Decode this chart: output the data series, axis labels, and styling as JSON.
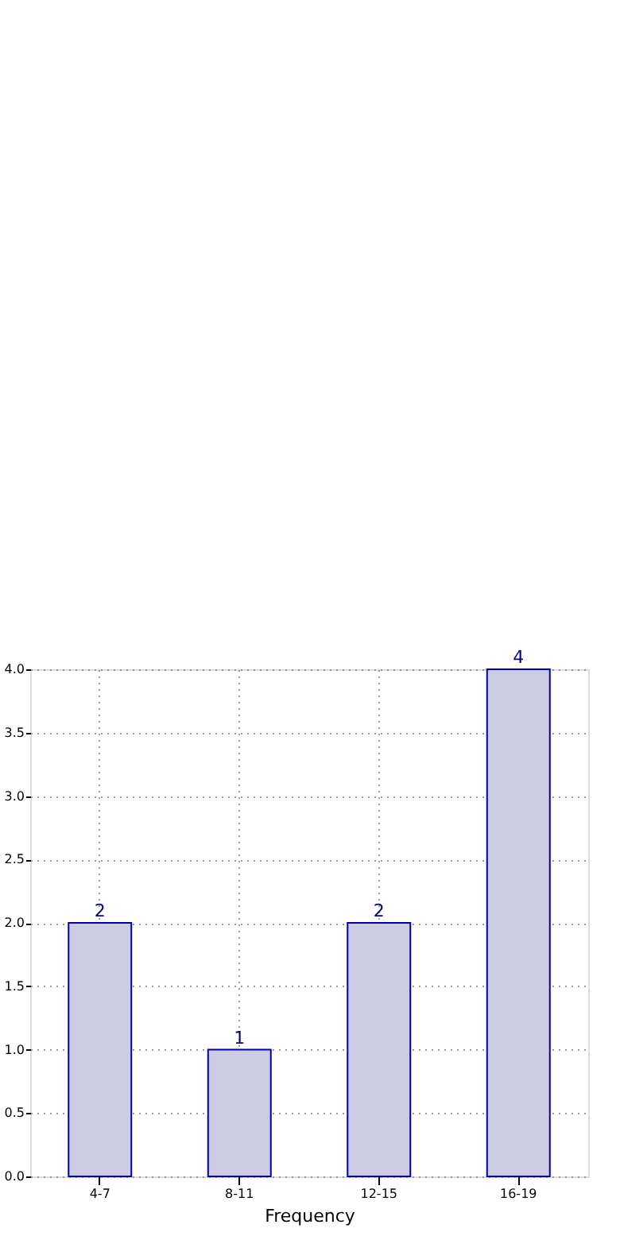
{
  "chart_data": {
    "type": "bar",
    "xlabel": "Frequency",
    "categories": [
      "4-7",
      "8-11",
      "12-15",
      "16-19"
    ],
    "values": [
      2,
      1,
      2,
      4
    ],
    "color": "#ccccE5",
    "ylim": [
      0,
      4
    ],
    "yticks": [
      {
        "value": 0,
        "label": "0.0"
      },
      {
        "value": 0.5,
        "label": "0.5"
      },
      {
        "value": 1,
        "label": "1.0"
      },
      {
        "value": 1.5,
        "label": "1.5"
      },
      {
        "value": 2,
        "label": "2.0"
      },
      {
        "value": 2.5,
        "label": "2.5"
      },
      {
        "value": 3,
        "label": "3.0"
      },
      {
        "value": 3.5,
        "label": "3.5"
      },
      {
        "value": 4,
        "label": "4.0"
      }
    ],
    "grid": true,
    "data_labels": true
  }
}
